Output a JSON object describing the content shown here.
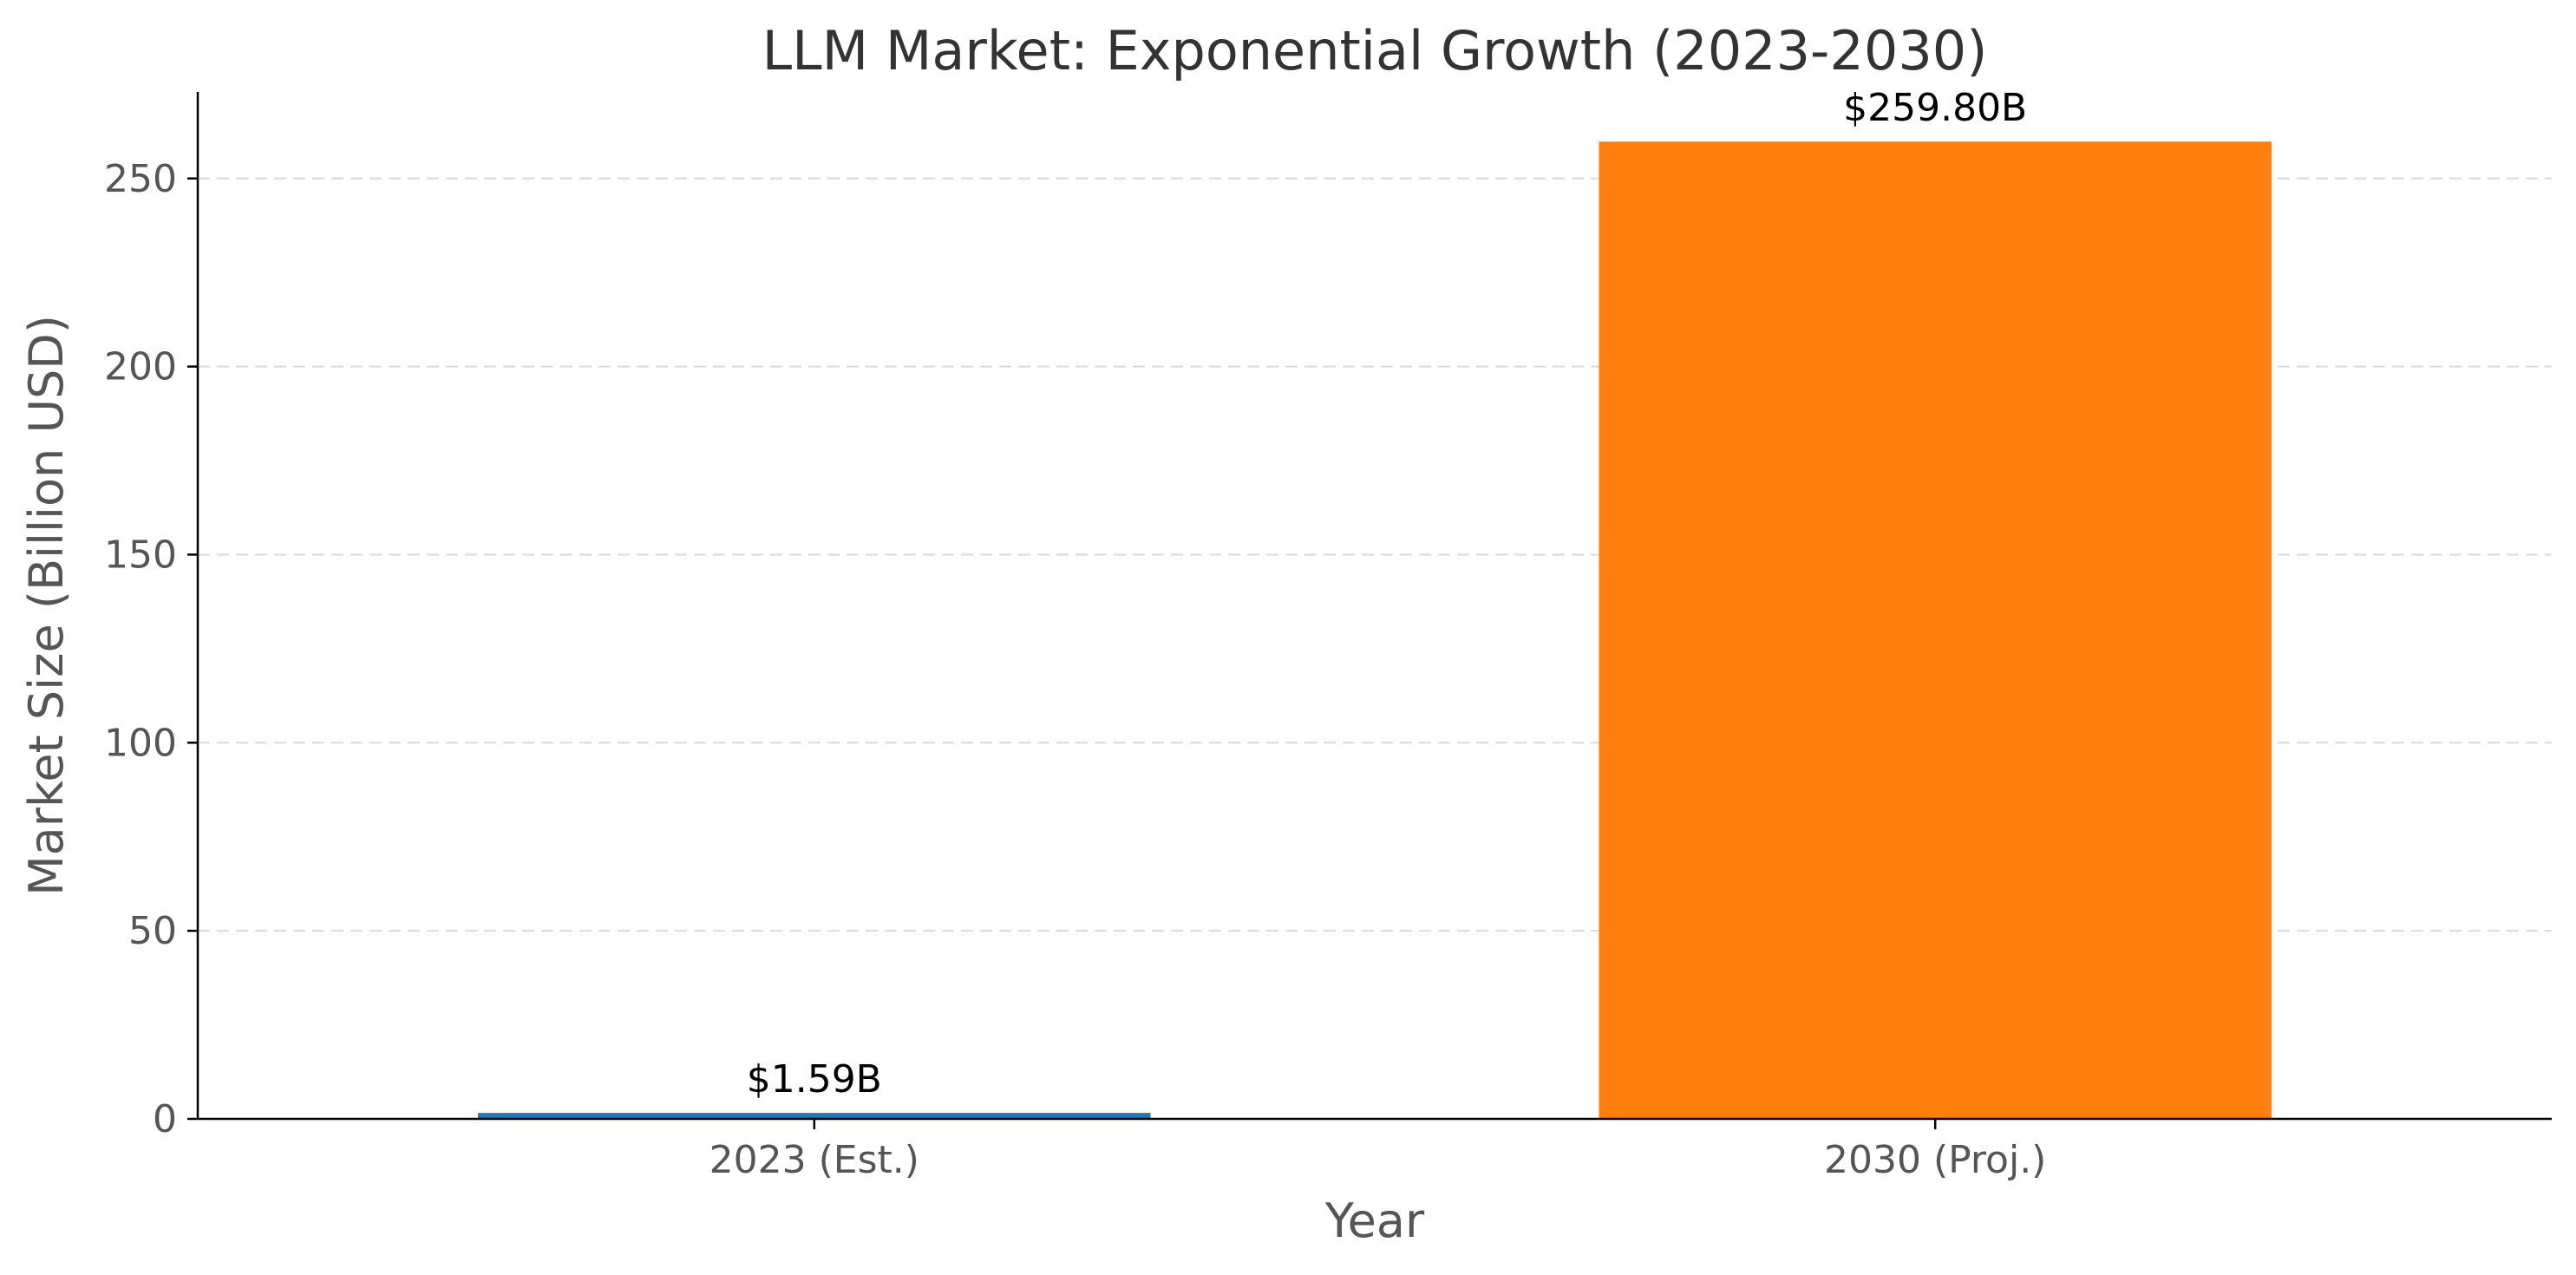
{
  "chart_data": {
    "type": "bar",
    "title": "LLM Market: Exponential Growth (2023-2030)",
    "xlabel": "Year",
    "ylabel": "Market Size (Billion USD)",
    "categories": [
      "2023 (Est.)",
      "2030 (Proj.)"
    ],
    "values": [
      1.59,
      259.8
    ],
    "data_labels": [
      "$1.59B",
      "$259.80B"
    ],
    "colors": [
      "#1f77b4",
      "#ff7f0e"
    ],
    "ylim": [
      0,
      273
    ],
    "yticks": [
      0,
      50,
      100,
      150,
      200,
      250
    ],
    "grid": "y-dashed",
    "legend": "none"
  }
}
